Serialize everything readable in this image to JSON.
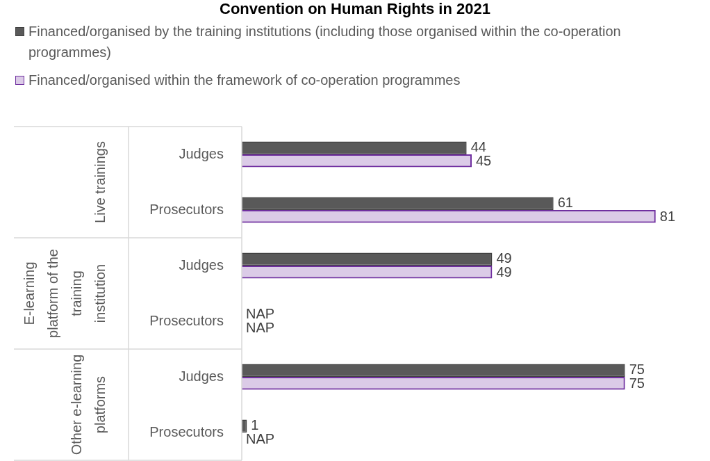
{
  "chart_data": {
    "type": "bar",
    "orientation": "horizontal",
    "title": "Convention on Human Rights in 2021",
    "categories": [
      "Judges",
      "Prosecutors",
      "Judges",
      "Prosecutors",
      "Judges",
      "Prosecutors"
    ],
    "series": [
      {
        "name": "Financed/organised by the training institutions (including those organised within the co-operation programmes)",
        "color": "#595959",
        "values": [
          44,
          61,
          49,
          null,
          75,
          1
        ],
        "value_labels": [
          "44",
          "61",
          "49",
          "NAP",
          "75",
          "1"
        ]
      },
      {
        "name": "Financed/organised within the framework of co-operation programmes",
        "color": "#7030a0",
        "values": [
          45,
          81,
          49,
          null,
          75,
          null
        ],
        "value_labels": [
          "45",
          "81",
          "49",
          "NAP",
          "75",
          "NAP"
        ]
      }
    ],
    "annotations": [
      "Live trainings",
      "E-learning platform of the training institution",
      "Other e-learning platforms"
    ],
    "tick_labels": "y",
    "legend": "top left"
  }
}
